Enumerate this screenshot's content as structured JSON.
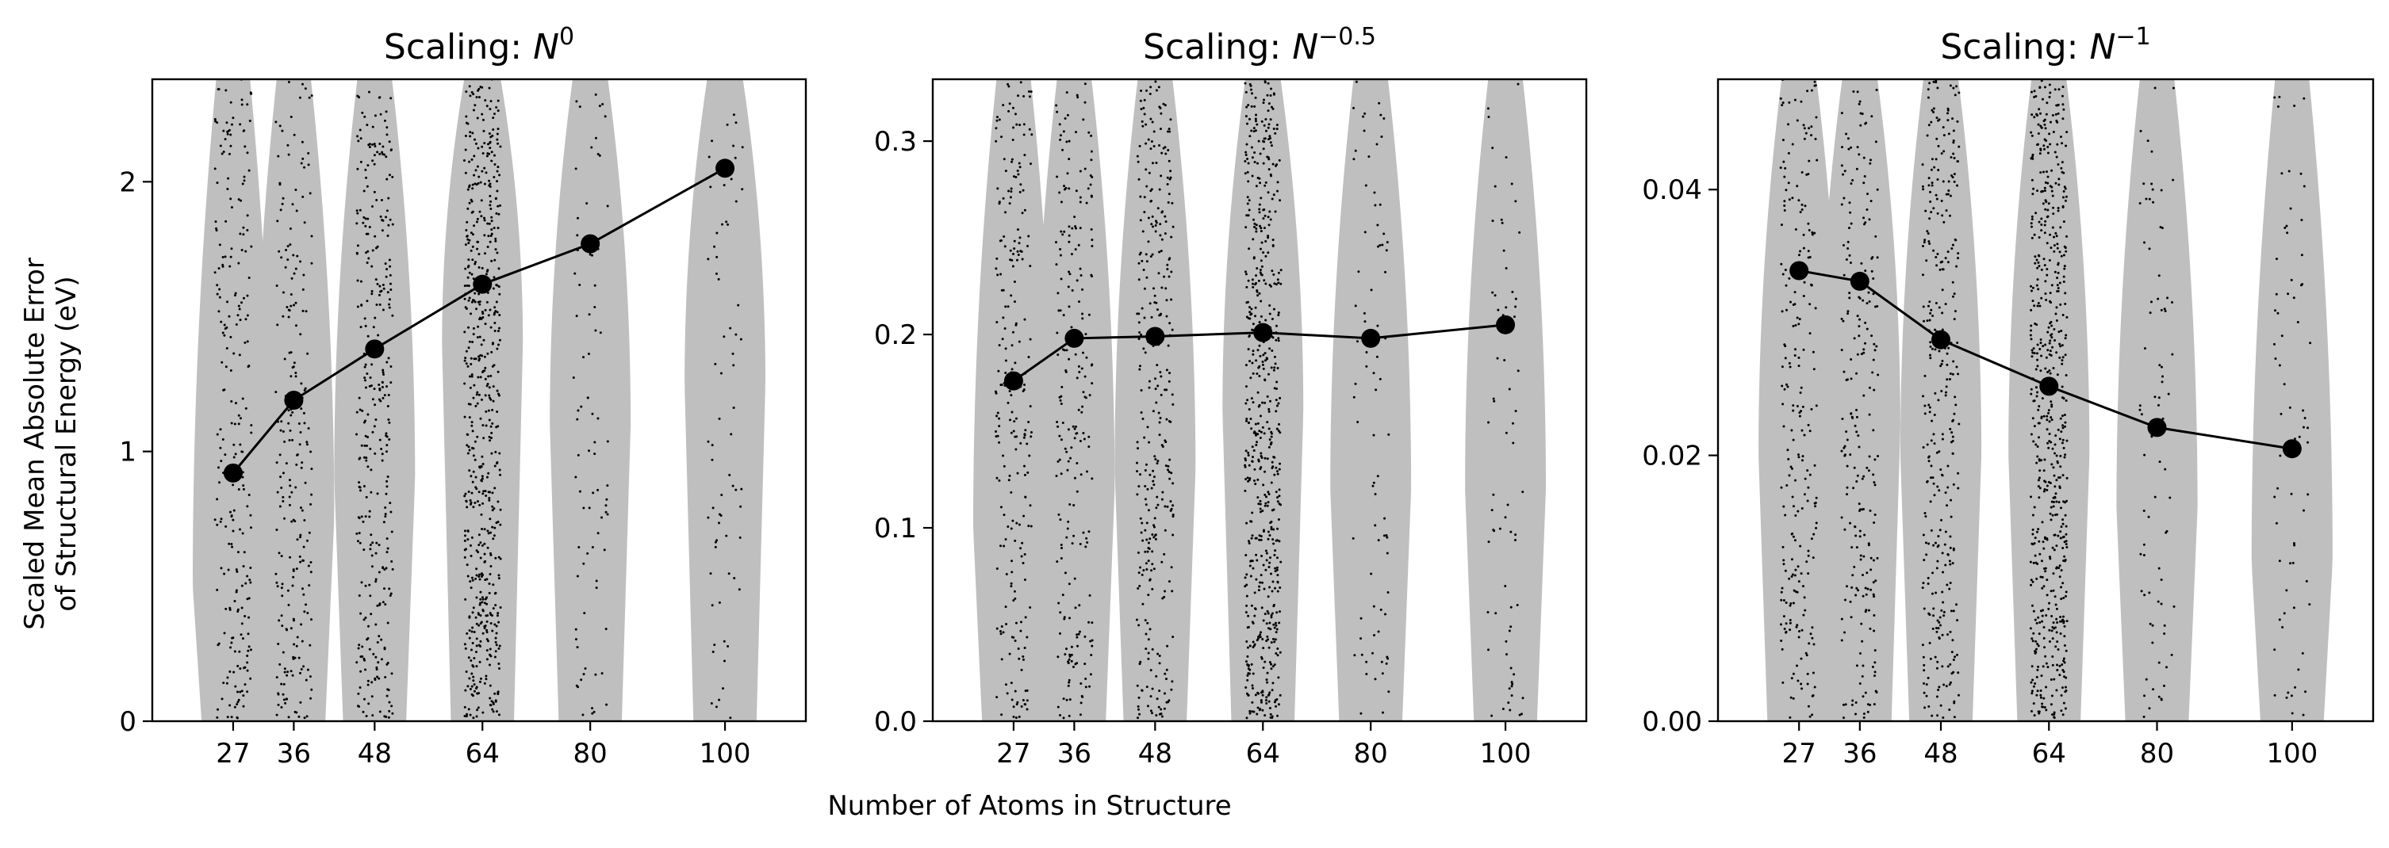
{
  "figure": {
    "ylabel_line1": "Scaled Mean Absolute Error",
    "ylabel_line2": "of Structural Energy (eV)",
    "xlabel": "Number of Atoms in Structure"
  },
  "chart_data": [
    {
      "type": "violin",
      "title_text": "Scaling: ",
      "title_base": "N",
      "title_exp": "0",
      "x_categories": [
        27,
        36,
        48,
        64,
        80,
        100
      ],
      "xlim": [
        15,
        112
      ],
      "ylim": [
        0,
        2.38
      ],
      "yticks": [
        0,
        1,
        2
      ],
      "ytick_labels": [
        "0",
        "1",
        "2"
      ],
      "means": [
        0.92,
        1.19,
        1.38,
        1.62,
        1.77,
        2.05
      ],
      "sample_counts": [
        240,
        230,
        330,
        600,
        80,
        70
      ],
      "violin_peak": [
        0.5,
        0.75,
        0.9,
        1.4,
        1.1,
        1.25
      ],
      "violin_halfwidth_atoms": [
        6,
        6,
        6,
        6,
        6,
        6
      ]
    },
    {
      "type": "violin",
      "title_text": "Scaling: ",
      "title_base": "N",
      "title_exp": "−0.5",
      "x_categories": [
        27,
        36,
        48,
        64,
        80,
        100
      ],
      "xlim": [
        15,
        112
      ],
      "ylim": [
        0,
        0.332
      ],
      "yticks": [
        0,
        0.1,
        0.2,
        0.3
      ],
      "ytick_labels": [
        "0.0",
        "0.1",
        "0.2",
        "0.3"
      ],
      "means": [
        0.176,
        0.198,
        0.199,
        0.201,
        0.198,
        0.205
      ],
      "sample_counts": [
        240,
        230,
        330,
        600,
        80,
        70
      ],
      "violin_peak": [
        0.1,
        0.12,
        0.13,
        0.16,
        0.12,
        0.12
      ],
      "violin_halfwidth_atoms": [
        6,
        6,
        6,
        6,
        6,
        6
      ]
    },
    {
      "type": "violin",
      "title_text": "Scaling: ",
      "title_base": "N",
      "title_exp": "−1",
      "x_categories": [
        27,
        36,
        48,
        64,
        80,
        100
      ],
      "xlim": [
        15,
        112
      ],
      "ylim": [
        0,
        0.0483
      ],
      "yticks": [
        0,
        0.02,
        0.04
      ],
      "ytick_labels": [
        "0.00",
        "0.02",
        "0.04"
      ],
      "means": [
        0.0339,
        0.0331,
        0.0287,
        0.0252,
        0.0221,
        0.0205
      ],
      "sample_counts": [
        240,
        230,
        330,
        600,
        80,
        70
      ],
      "violin_peak": [
        0.02,
        0.022,
        0.02,
        0.02,
        0.016,
        0.012
      ],
      "violin_halfwidth_atoms": [
        6,
        6,
        6,
        6,
        6,
        6
      ]
    }
  ]
}
